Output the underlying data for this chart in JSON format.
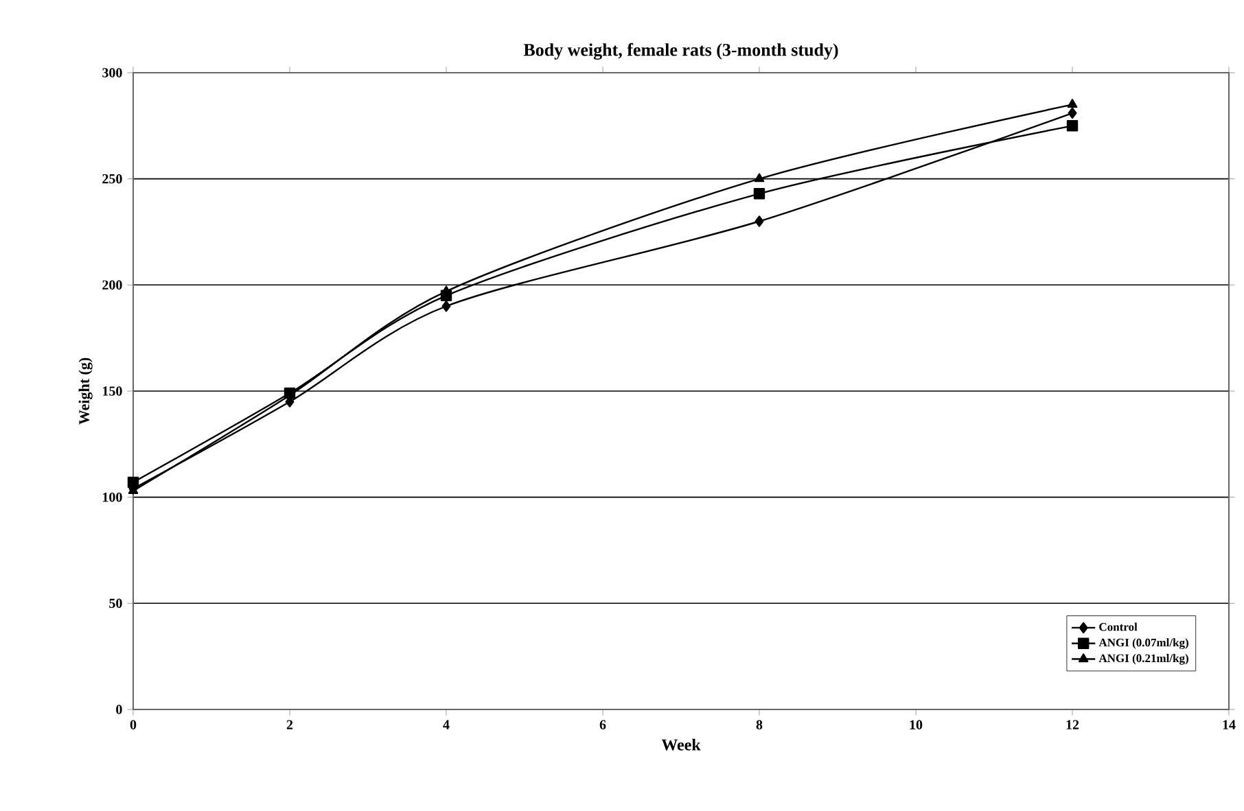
{
  "chart_data": {
    "type": "line",
    "title": "Body weight, female rats (3-month study)",
    "xlabel": "Week",
    "ylabel": "Weight (g)",
    "x": [
      0,
      2,
      4,
      8,
      12
    ],
    "series": [
      {
        "name": "Control",
        "color": "#000000",
        "marker": "diamond",
        "values": [
          104,
          145,
          190,
          230,
          281
        ]
      },
      {
        "name": "ANGI (0.07ml/kg)",
        "color": "#000000",
        "marker": "square",
        "values": [
          107,
          149,
          195,
          243,
          275
        ]
      },
      {
        "name": "ANGI (0.21ml/kg)",
        "color": "#000000",
        "marker": "triangle",
        "values": [
          103,
          148,
          197,
          250,
          285
        ]
      }
    ],
    "xlim": [
      0,
      14
    ],
    "xticks": [
      0,
      2,
      4,
      6,
      8,
      10,
      12,
      14
    ],
    "ylim": [
      0,
      300
    ],
    "yticks": [
      0,
      50,
      100,
      150,
      200,
      250,
      300
    ],
    "grid": "y",
    "legend": "bottom right",
    "line_style": "solid"
  }
}
